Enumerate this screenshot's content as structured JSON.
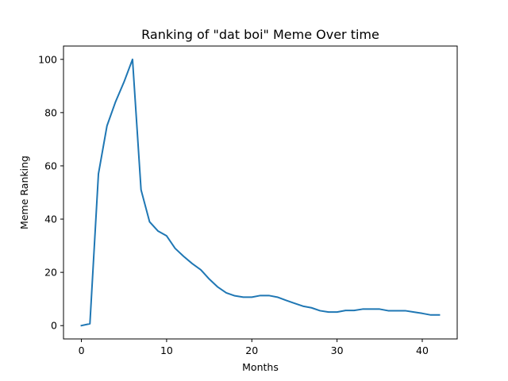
{
  "chart_data": {
    "type": "line",
    "title": "Ranking of \"dat boi\" Meme Over time",
    "xlabel": "Months",
    "ylabel": "Meme Ranking",
    "xlim": [
      -2.1,
      44.1
    ],
    "ylim": [
      -5,
      105
    ],
    "xticks": [
      0,
      10,
      20,
      30,
      40
    ],
    "yticks": [
      0,
      20,
      40,
      60,
      80,
      100
    ],
    "grid": false,
    "series": [
      {
        "color": "#1f77b4",
        "x": [
          0,
          1,
          2,
          3,
          4,
          5,
          6,
          7,
          8,
          9,
          10,
          11,
          12,
          13,
          14,
          15,
          16,
          17,
          18,
          19,
          20,
          21,
          22,
          23,
          24,
          25,
          26,
          27,
          28,
          29,
          30,
          31,
          32,
          33,
          34,
          35,
          36,
          37,
          38,
          39,
          40,
          41,
          42
        ],
        "y": [
          0,
          0.7,
          57,
          75,
          84,
          91.5,
          100,
          51,
          39,
          35.5,
          33.7,
          29,
          26,
          23.3,
          21,
          17.5,
          14.5,
          12.3,
          11.2,
          10.7,
          10.7,
          11.3,
          11.3,
          10.7,
          9.5,
          8.4,
          7.3,
          6.7,
          5.6,
          5.1,
          5.1,
          5.7,
          5.7,
          6.2,
          6.2,
          6.2,
          5.6,
          5.6,
          5.6,
          5.1,
          4.6,
          4,
          4
        ]
      }
    ]
  }
}
